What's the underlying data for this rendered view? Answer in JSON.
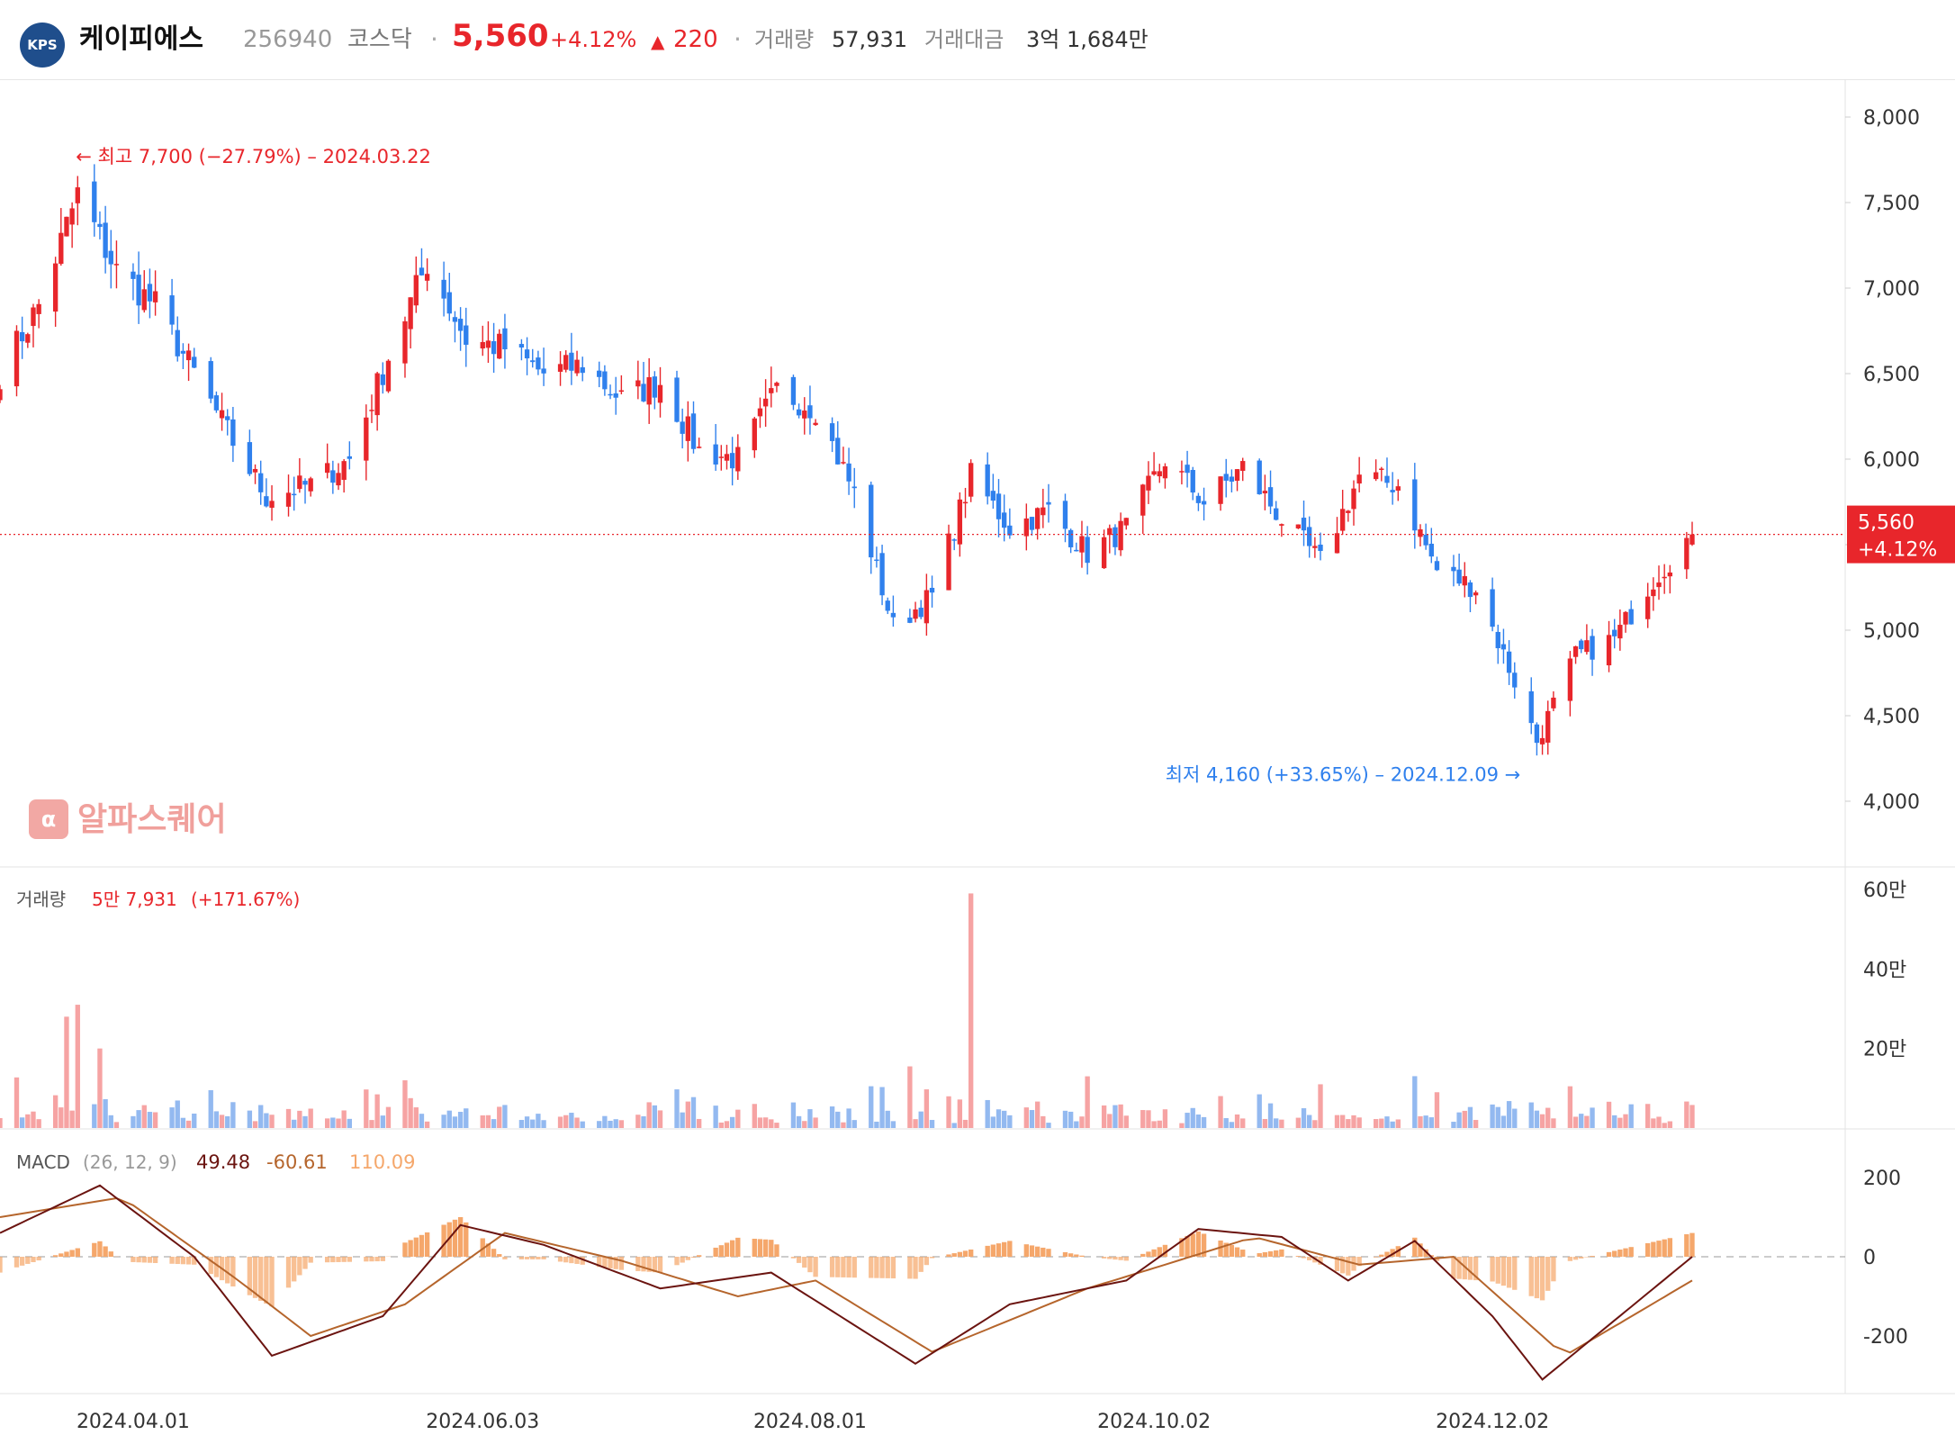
{
  "header": {
    "logo_text": "KPS",
    "company_name": "케이피에스",
    "code": "256940",
    "market": "코스닥",
    "separator": "·",
    "price": "5,560",
    "change_pct": "+4.12%",
    "change_arrow": "▲",
    "change_abs": "220",
    "volume_label": "거래량",
    "volume_value": "57,931",
    "amount_label": "거래대금",
    "amount_value": "3억 1,684만"
  },
  "watermark": {
    "icon_text": "α",
    "text": "알파스퀘어"
  },
  "colors": {
    "up": "#e8262b",
    "down": "#2f80ed",
    "vol_up": "#f6a3a3",
    "vol_down": "#93b9f0",
    "macd_hist": "#f5a76b",
    "macd_line": "#6b1410",
    "signal_line": "#b5652c"
  },
  "chart_data": [
    {
      "type": "candlestick",
      "price_axis": {
        "ticks": [
          "8,000",
          "7,500",
          "7,000",
          "6,500",
          "6,000",
          "5,500",
          "5,000",
          "4,500",
          "4,000"
        ],
        "ylim": [
          4000,
          8000
        ]
      },
      "current_price": {
        "label": "5,560",
        "change": "+4.12%",
        "value": 5560
      },
      "high_annotation": {
        "text": "← 최고 7,700 (−27.79%) – 2024.03.22",
        "value": 7700,
        "date": "2024.03.22"
      },
      "low_annotation": {
        "text": "최저 4,160 (+33.65%) – 2024.12.09 →",
        "value": 4160,
        "date": "2024.12.09"
      },
      "x_axis": {
        "ticks": [
          "2024.04.01",
          "2024.06.03",
          "2024.08.01",
          "2024.10.02",
          "2024.12.02"
        ]
      },
      "anchors": [
        {
          "date": "2024.03.08",
          "close": 6500
        },
        {
          "date": "2024.03.15",
          "close": 6900
        },
        {
          "date": "2024.03.22",
          "close": 7550
        },
        {
          "date": "2024.03.29",
          "close": 7100
        },
        {
          "date": "2024.04.05",
          "close": 6900
        },
        {
          "date": "2024.04.12",
          "close": 6500
        },
        {
          "date": "2024.04.19",
          "close": 6100
        },
        {
          "date": "2024.04.25",
          "close": 5780
        },
        {
          "date": "2024.05.03",
          "close": 5850
        },
        {
          "date": "2024.05.10",
          "close": 6000
        },
        {
          "date": "2024.05.17",
          "close": 6600
        },
        {
          "date": "2024.05.24",
          "close": 7150
        },
        {
          "date": "2024.05.31",
          "close": 6700
        },
        {
          "date": "2024.06.07",
          "close": 6650
        },
        {
          "date": "2024.06.14",
          "close": 6500
        },
        {
          "date": "2024.06.21",
          "close": 6550
        },
        {
          "date": "2024.06.28",
          "close": 6350
        },
        {
          "date": "2024.07.05",
          "close": 6450
        },
        {
          "date": "2024.07.12",
          "close": 6050
        },
        {
          "date": "2024.07.19",
          "close": 6000
        },
        {
          "date": "2024.07.26",
          "close": 6400
        },
        {
          "date": "2024.08.02",
          "close": 6300
        },
        {
          "date": "2024.08.09",
          "close": 5800
        },
        {
          "date": "2024.08.16",
          "close": 5020
        },
        {
          "date": "2024.08.23",
          "close": 5200
        },
        {
          "date": "2024.08.30",
          "close": 5900
        },
        {
          "date": "2024.09.06",
          "close": 5600
        },
        {
          "date": "2024.09.13",
          "close": 5700
        },
        {
          "date": "2024.09.20",
          "close": 5450
        },
        {
          "date": "2024.09.27",
          "close": 5600
        },
        {
          "date": "2024.10.04",
          "close": 6000
        },
        {
          "date": "2024.10.11",
          "close": 5750
        },
        {
          "date": "2024.10.18",
          "close": 5950
        },
        {
          "date": "2024.10.25",
          "close": 5650
        },
        {
          "date": "2024.11.01",
          "close": 5400
        },
        {
          "date": "2024.11.08",
          "close": 5900
        },
        {
          "date": "2024.11.15",
          "close": 5850
        },
        {
          "date": "2024.11.22",
          "close": 5350
        },
        {
          "date": "2024.11.29",
          "close": 5250
        },
        {
          "date": "2024.12.06",
          "close": 4700
        },
        {
          "date": "2024.12.10",
          "close": 4350
        },
        {
          "date": "2024.12.17",
          "close": 4850
        },
        {
          "date": "2024.12.24",
          "close": 4950
        },
        {
          "date": "2024.12.31",
          "close": 5300
        },
        {
          "date": "2025.01.07",
          "close": 5560
        }
      ]
    },
    {
      "type": "bar",
      "title": "거래량",
      "last_value": "5만 7,931",
      "last_change": "(+171.67%)",
      "y_ticks": [
        "60만",
        "40만",
        "20만"
      ],
      "ylim": [
        0,
        600000
      ],
      "peaks": [
        {
          "date": "2024.03.20",
          "value": 280000
        },
        {
          "date": "2024.03.22",
          "value": 310000
        },
        {
          "date": "2024.03.26",
          "value": 200000
        },
        {
          "date": "2024.05.20",
          "value": 120000
        },
        {
          "date": "2024.08.19",
          "value": 155000
        },
        {
          "date": "2024.08.30",
          "value": 590000
        },
        {
          "date": "2024.09.20",
          "value": 130000
        },
        {
          "date": "2024.11.01",
          "value": 110000
        },
        {
          "date": "2024.11.22",
          "value": 90000
        }
      ]
    },
    {
      "type": "line",
      "title": "MACD",
      "params": "(26, 12, 9)",
      "values": [
        "49.48",
        "-60.61",
        "110.09"
      ],
      "y_ticks": [
        "200",
        "0",
        "-200"
      ],
      "ylim": [
        -350,
        250
      ],
      "series": [
        {
          "name": "MACD",
          "anchors": [
            {
              "date": "2024.03.08",
              "value": 60
            },
            {
              "date": "2024.03.26",
              "value": 180
            },
            {
              "date": "2024.04.12",
              "value": 0
            },
            {
              "date": "2024.04.26",
              "value": -250
            },
            {
              "date": "2024.05.16",
              "value": -150
            },
            {
              "date": "2024.05.30",
              "value": 80
            },
            {
              "date": "2024.06.14",
              "value": 30
            },
            {
              "date": "2024.07.05",
              "value": -80
            },
            {
              "date": "2024.07.25",
              "value": -40
            },
            {
              "date": "2024.08.20",
              "value": -270
            },
            {
              "date": "2024.09.06",
              "value": -120
            },
            {
              "date": "2024.09.27",
              "value": -60
            },
            {
              "date": "2024.10.10",
              "value": 70
            },
            {
              "date": "2024.10.25",
              "value": 50
            },
            {
              "date": "2024.11.06",
              "value": -60
            },
            {
              "date": "2024.11.18",
              "value": 40
            },
            {
              "date": "2024.12.02",
              "value": -150
            },
            {
              "date": "2024.12.11",
              "value": -310
            },
            {
              "date": "2025.01.07",
              "value": 0
            }
          ]
        },
        {
          "name": "Signal",
          "anchors": [
            {
              "date": "2024.03.08",
              "value": 100
            },
            {
              "date": "2024.03.30",
              "value": 150
            },
            {
              "date": "2024.04.20",
              "value": -60
            },
            {
              "date": "2024.05.03",
              "value": -200
            },
            {
              "date": "2024.05.20",
              "value": -120
            },
            {
              "date": "2024.06.07",
              "value": 60
            },
            {
              "date": "2024.06.28",
              "value": -10
            },
            {
              "date": "2024.07.19",
              "value": -100
            },
            {
              "date": "2024.08.02",
              "value": -60
            },
            {
              "date": "2024.08.23",
              "value": -240
            },
            {
              "date": "2024.09.20",
              "value": -80
            },
            {
              "date": "2024.10.04",
              "value": -20
            },
            {
              "date": "2024.10.20",
              "value": 50
            },
            {
              "date": "2024.11.08",
              "value": -20
            },
            {
              "date": "2024.11.25",
              "value": 0
            },
            {
              "date": "2024.12.15",
              "value": -250
            },
            {
              "date": "2025.01.07",
              "value": -60
            }
          ]
        }
      ]
    }
  ]
}
